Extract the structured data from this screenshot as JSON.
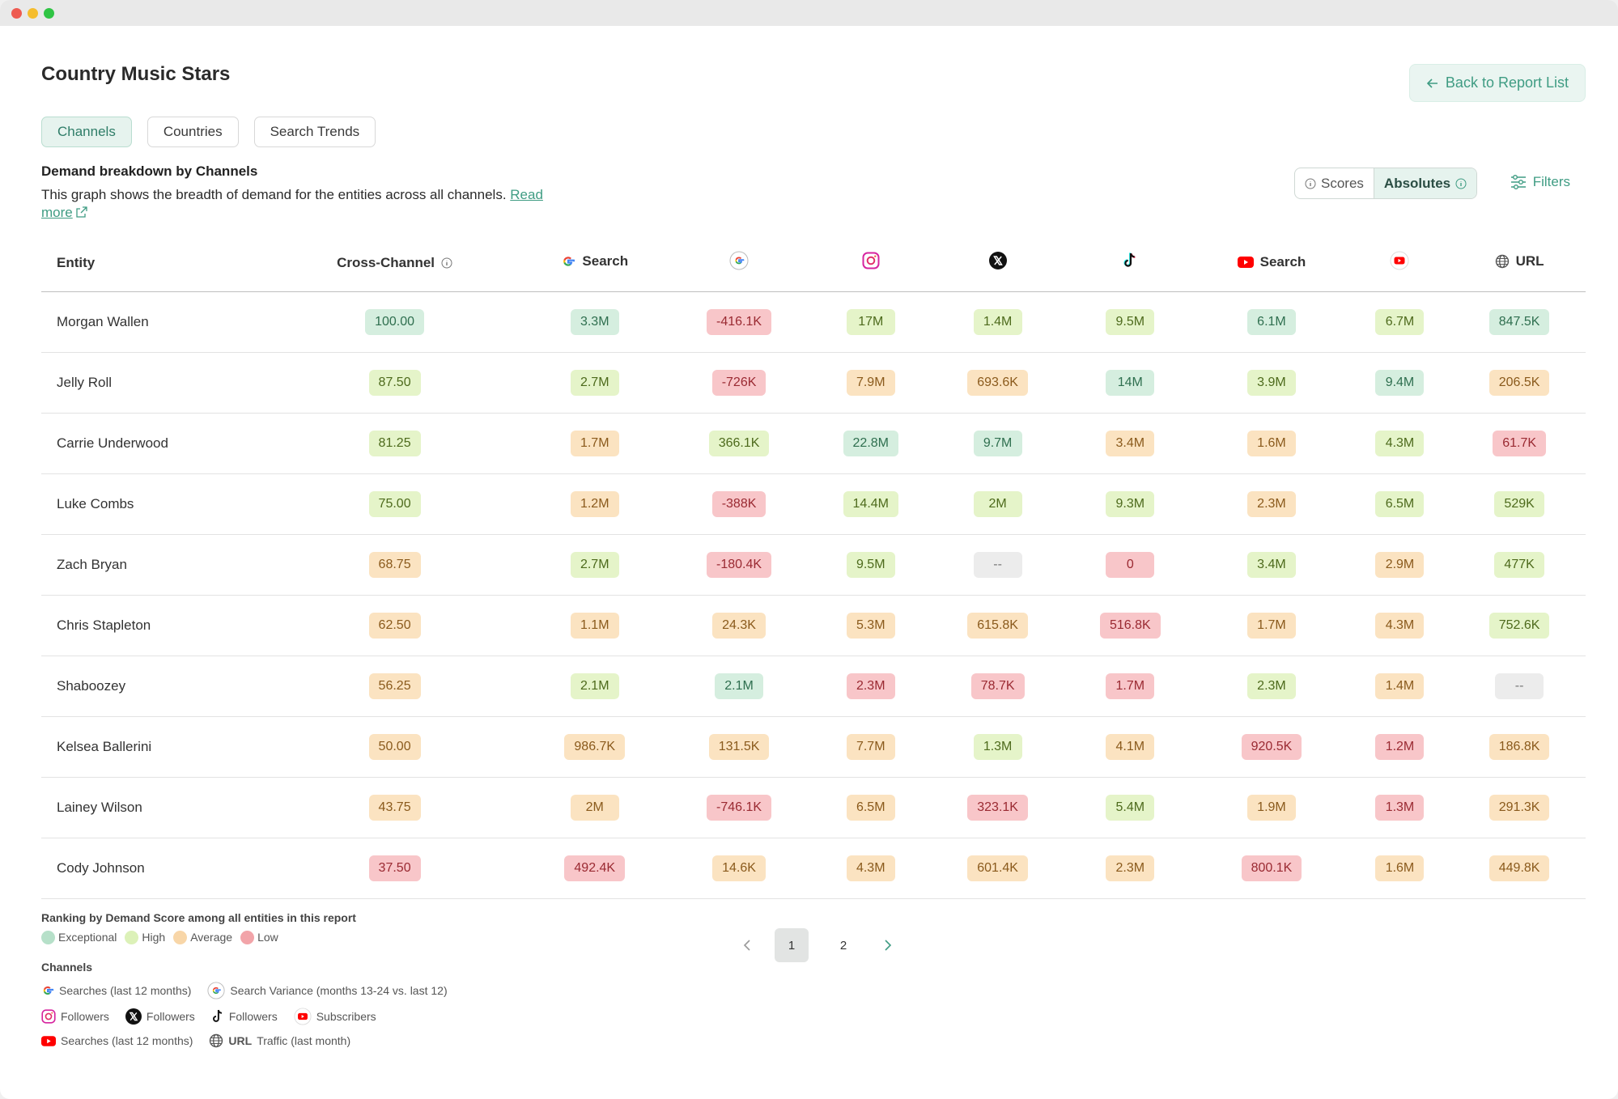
{
  "page": {
    "title": "Country Music Stars",
    "back_label": "Back to Report List"
  },
  "tabs": [
    {
      "label": "Channels",
      "active": true
    },
    {
      "label": "Countries",
      "active": false
    },
    {
      "label": "Search Trends",
      "active": false
    }
  ],
  "section": {
    "title": "Demand breakdown by Channels",
    "description": "This graph shows the breadth of demand for the entities across all channels.",
    "read_more": "Read more"
  },
  "toggle": {
    "scores": "Scores",
    "absolutes": "Absolutes",
    "active": "absolutes"
  },
  "filters_label": "Filters",
  "columns": {
    "entity": "Entity",
    "cross_channel": "Cross-Channel",
    "google_search": "Search",
    "youtube_search": "Search",
    "url": "URL"
  },
  "rows": [
    {
      "name": "Morgan Wallen",
      "cells": [
        [
          "100.00",
          "exc"
        ],
        [
          "3.3M",
          "exc"
        ],
        [
          "-416.1K",
          "low"
        ],
        [
          "17M",
          "high"
        ],
        [
          "1.4M",
          "high"
        ],
        [
          "9.5M",
          "high"
        ],
        [
          "6.1M",
          "exc"
        ],
        [
          "6.7M",
          "high"
        ],
        [
          "847.5K",
          "exc"
        ]
      ]
    },
    {
      "name": "Jelly Roll",
      "cells": [
        [
          "87.50",
          "high"
        ],
        [
          "2.7M",
          "high"
        ],
        [
          "-726K",
          "low"
        ],
        [
          "7.9M",
          "avg"
        ],
        [
          "693.6K",
          "avg"
        ],
        [
          "14M",
          "exc"
        ],
        [
          "3.9M",
          "high"
        ],
        [
          "9.4M",
          "exc"
        ],
        [
          "206.5K",
          "avg"
        ]
      ]
    },
    {
      "name": "Carrie Underwood",
      "cells": [
        [
          "81.25",
          "high"
        ],
        [
          "1.7M",
          "avg"
        ],
        [
          "366.1K",
          "high"
        ],
        [
          "22.8M",
          "exc"
        ],
        [
          "9.7M",
          "exc"
        ],
        [
          "3.4M",
          "avg"
        ],
        [
          "1.6M",
          "avg"
        ],
        [
          "4.3M",
          "high"
        ],
        [
          "61.7K",
          "low"
        ]
      ]
    },
    {
      "name": "Luke Combs",
      "cells": [
        [
          "75.00",
          "high"
        ],
        [
          "1.2M",
          "avg"
        ],
        [
          "-388K",
          "low"
        ],
        [
          "14.4M",
          "high"
        ],
        [
          "2M",
          "high"
        ],
        [
          "9.3M",
          "high"
        ],
        [
          "2.3M",
          "avg"
        ],
        [
          "6.5M",
          "high"
        ],
        [
          "529K",
          "high"
        ]
      ]
    },
    {
      "name": "Zach Bryan",
      "cells": [
        [
          "68.75",
          "avg"
        ],
        [
          "2.7M",
          "high"
        ],
        [
          "-180.4K",
          "low"
        ],
        [
          "9.5M",
          "high"
        ],
        [
          "--",
          "na"
        ],
        [
          "0",
          "low"
        ],
        [
          "3.4M",
          "high"
        ],
        [
          "2.9M",
          "avg"
        ],
        [
          "477K",
          "high"
        ]
      ]
    },
    {
      "name": "Chris Stapleton",
      "cells": [
        [
          "62.50",
          "avg"
        ],
        [
          "1.1M",
          "avg"
        ],
        [
          "24.3K",
          "avg"
        ],
        [
          "5.3M",
          "avg"
        ],
        [
          "615.8K",
          "avg"
        ],
        [
          "516.8K",
          "low"
        ],
        [
          "1.7M",
          "avg"
        ],
        [
          "4.3M",
          "avg"
        ],
        [
          "752.6K",
          "high"
        ]
      ]
    },
    {
      "name": "Shaboozey",
      "cells": [
        [
          "56.25",
          "avg"
        ],
        [
          "2.1M",
          "high"
        ],
        [
          "2.1M",
          "exc"
        ],
        [
          "2.3M",
          "low"
        ],
        [
          "78.7K",
          "low"
        ],
        [
          "1.7M",
          "low"
        ],
        [
          "2.3M",
          "high"
        ],
        [
          "1.4M",
          "avg"
        ],
        [
          "--",
          "na"
        ]
      ]
    },
    {
      "name": "Kelsea Ballerini",
      "cells": [
        [
          "50.00",
          "avg"
        ],
        [
          "986.7K",
          "avg"
        ],
        [
          "131.5K",
          "avg"
        ],
        [
          "7.7M",
          "avg"
        ],
        [
          "1.3M",
          "high"
        ],
        [
          "4.1M",
          "avg"
        ],
        [
          "920.5K",
          "low"
        ],
        [
          "1.2M",
          "low"
        ],
        [
          "186.8K",
          "avg"
        ]
      ]
    },
    {
      "name": "Lainey Wilson",
      "cells": [
        [
          "43.75",
          "avg"
        ],
        [
          "2M",
          "avg"
        ],
        [
          "-746.1K",
          "low"
        ],
        [
          "6.5M",
          "avg"
        ],
        [
          "323.1K",
          "low"
        ],
        [
          "5.4M",
          "high"
        ],
        [
          "1.9M",
          "avg"
        ],
        [
          "1.3M",
          "low"
        ],
        [
          "291.3K",
          "avg"
        ]
      ]
    },
    {
      "name": "Cody Johnson",
      "cells": [
        [
          "37.50",
          "low"
        ],
        [
          "492.4K",
          "low"
        ],
        [
          "14.6K",
          "avg"
        ],
        [
          "4.3M",
          "avg"
        ],
        [
          "601.4K",
          "avg"
        ],
        [
          "2.3M",
          "avg"
        ],
        [
          "800.1K",
          "low"
        ],
        [
          "1.6M",
          "avg"
        ],
        [
          "449.8K",
          "avg"
        ]
      ]
    }
  ],
  "legend": {
    "title": "Ranking by Demand Score among all entities in this report",
    "levels": [
      {
        "label": "Exceptional",
        "color": "#b6e0c9"
      },
      {
        "label": "High",
        "color": "#dcf1b8"
      },
      {
        "label": "Average",
        "color": "#f8d6a8"
      },
      {
        "label": "Low",
        "color": "#f2a4a9"
      }
    ],
    "channels_title": "Channels",
    "channels": {
      "google_search": "Searches (last 12 months)",
      "google_variance": "Search Variance (months 13-24 vs. last 12)",
      "instagram": "Followers",
      "x": "Followers",
      "tiktok": "Followers",
      "youtube_subs": "Subscribers",
      "youtube_search": "Searches (last 12 months)",
      "url_bold": "URL",
      "url": "Traffic (last month)"
    }
  },
  "pagination": {
    "pages": [
      "1",
      "2"
    ],
    "current": "1"
  },
  "colors": {
    "accent": "#3f9c83"
  }
}
